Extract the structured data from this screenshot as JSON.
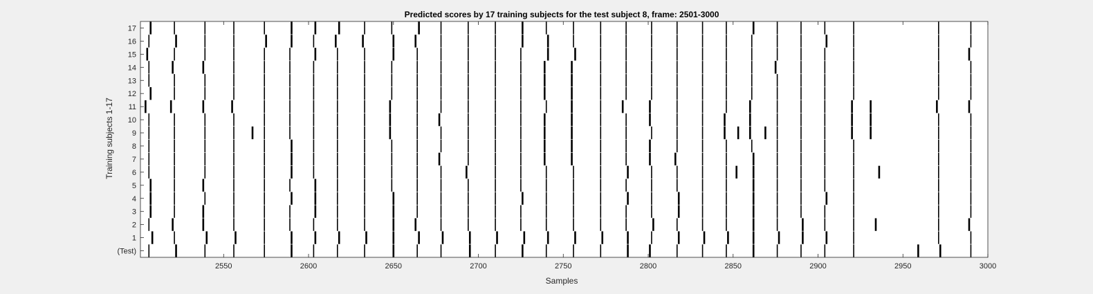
{
  "chart_data": {
    "type": "raster",
    "title": "Predicted scores by 17 training subjects for the test subject 8, frame: 2501-3000",
    "xlabel": "Samples",
    "ylabel": "Training subjects 1-17",
    "xlim": [
      2501,
      3000
    ],
    "xticks": [
      2550,
      2600,
      2650,
      2700,
      2750,
      2800,
      2850,
      2900,
      2950,
      3000
    ],
    "ytick_labels": [
      "(Test)",
      "1",
      "2",
      "3",
      "4",
      "5",
      "6",
      "7",
      "8",
      "9",
      "10",
      "11",
      "12",
      "13",
      "14",
      "15",
      "16",
      "17"
    ],
    "mark_color": "#000000",
    "background_color": "#ffffff",
    "grid": false,
    "base_events": [
      2506,
      2521,
      2539,
      2556,
      2574,
      2589,
      2603,
      2617,
      2633,
      2649,
      2664,
      2678,
      2694,
      2710,
      2725,
      2740,
      2756,
      2772,
      2787,
      2802,
      2817,
      2832,
      2846,
      2861,
      2876,
      2890,
      2904,
      2921,
      2971,
      2990
    ],
    "rows": [
      {
        "label": "(Test)",
        "events": [
          2506,
          2522,
          2539,
          2556,
          2574,
          2590,
          2603,
          2617,
          2633,
          2650,
          2664,
          2678,
          2695,
          2710,
          2726,
          2740,
          2756,
          2772,
          2788,
          2801,
          2817,
          2832,
          2846,
          2862,
          2876,
          2890,
          2904,
          2921,
          2959,
          2972,
          2990
        ]
      },
      {
        "label": "1",
        "events": [
          2508,
          2521,
          2540,
          2557,
          2574,
          2590,
          2604,
          2618,
          2634,
          2650,
          2665,
          2679,
          2695,
          2711,
          2727,
          2741,
          2757,
          2773,
          2788,
          2802,
          2818,
          2833,
          2847,
          2862,
          2877,
          2891,
          2905,
          2921,
          2971,
          2990
        ]
      },
      {
        "label": "2",
        "events": [
          2506,
          2520,
          2538,
          2556,
          2574,
          2589,
          2603,
          2617,
          2633,
          2650,
          2663,
          2678,
          2694,
          2710,
          2725,
          2740,
          2756,
          2772,
          2787,
          2803,
          2817,
          2832,
          2846,
          2862,
          2876,
          2891,
          2904,
          2921,
          2934,
          2971,
          2989
        ]
      },
      {
        "label": "3",
        "events": [
          2507,
          2521,
          2538,
          2556,
          2574,
          2589,
          2604,
          2617,
          2633,
          2650,
          2664,
          2678,
          2694,
          2710,
          2725,
          2740,
          2756,
          2772,
          2787,
          2802,
          2818,
          2832,
          2846,
          2862,
          2876,
          2890,
          2904,
          2921,
          2971,
          2990
        ]
      },
      {
        "label": "4",
        "events": [
          2507,
          2521,
          2539,
          2556,
          2574,
          2590,
          2604,
          2617,
          2633,
          2650,
          2664,
          2678,
          2694,
          2710,
          2726,
          2740,
          2756,
          2772,
          2788,
          2802,
          2818,
          2832,
          2846,
          2862,
          2876,
          2890,
          2905,
          2921,
          2971,
          2990
        ]
      },
      {
        "label": "5",
        "events": [
          2507,
          2521,
          2538,
          2556,
          2574,
          2589,
          2604,
          2617,
          2633,
          2649,
          2664,
          2678,
          2694,
          2710,
          2725,
          2740,
          2756,
          2772,
          2787,
          2802,
          2817,
          2832,
          2846,
          2862,
          2876,
          2890,
          2904,
          2921,
          2971,
          2990
        ]
      },
      {
        "label": "6",
        "events": [
          2506,
          2521,
          2539,
          2556,
          2574,
          2590,
          2603,
          2617,
          2633,
          2649,
          2664,
          2678,
          2693,
          2710,
          2725,
          2740,
          2756,
          2772,
          2788,
          2802,
          2817,
          2832,
          2846,
          2852,
          2862,
          2876,
          2890,
          2904,
          2921,
          2936,
          2971,
          2990
        ]
      },
      {
        "label": "7",
        "events": [
          2506,
          2521,
          2539,
          2556,
          2574,
          2590,
          2603,
          2617,
          2633,
          2649,
          2664,
          2677,
          2694,
          2710,
          2725,
          2739,
          2755,
          2772,
          2787,
          2801,
          2816,
          2832,
          2846,
          2862,
          2876,
          2890,
          2904,
          2921,
          2971,
          2990
        ]
      },
      {
        "label": "8",
        "events": [
          2506,
          2521,
          2539,
          2556,
          2574,
          2590,
          2603,
          2617,
          2633,
          2649,
          2664,
          2678,
          2694,
          2710,
          2725,
          2739,
          2755,
          2772,
          2787,
          2801,
          2817,
          2832,
          2846,
          2861,
          2876,
          2890,
          2904,
          2921,
          2971,
          2990
        ]
      },
      {
        "label": "9",
        "events": [
          2506,
          2521,
          2539,
          2556,
          2567,
          2574,
          2589,
          2603,
          2617,
          2633,
          2648,
          2664,
          2678,
          2694,
          2710,
          2725,
          2739,
          2755,
          2772,
          2787,
          2802,
          2817,
          2832,
          2845,
          2853,
          2860,
          2869,
          2876,
          2890,
          2904,
          2920,
          2931,
          2971,
          2990
        ]
      },
      {
        "label": "10",
        "events": [
          2506,
          2521,
          2539,
          2556,
          2574,
          2589,
          2603,
          2617,
          2633,
          2648,
          2664,
          2677,
          2694,
          2710,
          2725,
          2739,
          2755,
          2772,
          2787,
          2801,
          2817,
          2832,
          2845,
          2860,
          2876,
          2890,
          2904,
          2920,
          2931,
          2971,
          2990
        ]
      },
      {
        "label": "11",
        "events": [
          2504,
          2519,
          2538,
          2555,
          2574,
          2589,
          2603,
          2617,
          2633,
          2648,
          2664,
          2678,
          2694,
          2710,
          2725,
          2740,
          2755,
          2772,
          2785,
          2801,
          2817,
          2832,
          2846,
          2860,
          2876,
          2890,
          2904,
          2920,
          2931,
          2970,
          2989
        ]
      },
      {
        "label": "12",
        "events": [
          2507,
          2521,
          2539,
          2556,
          2574,
          2589,
          2603,
          2617,
          2633,
          2649,
          2664,
          2678,
          2694,
          2710,
          2725,
          2739,
          2755,
          2772,
          2787,
          2802,
          2817,
          2832,
          2846,
          2861,
          2876,
          2890,
          2904,
          2921,
          2971,
          2990
        ]
      },
      {
        "label": "13",
        "events": [
          2506,
          2521,
          2539,
          2556,
          2574,
          2589,
          2603,
          2617,
          2633,
          2649,
          2664,
          2678,
          2694,
          2710,
          2725,
          2739,
          2755,
          2772,
          2787,
          2802,
          2817,
          2832,
          2846,
          2861,
          2876,
          2890,
          2904,
          2921,
          2971,
          2990
        ]
      },
      {
        "label": "14",
        "events": [
          2506,
          2520,
          2538,
          2556,
          2574,
          2589,
          2603,
          2617,
          2633,
          2649,
          2664,
          2678,
          2694,
          2710,
          2725,
          2739,
          2755,
          2772,
          2787,
          2802,
          2817,
          2832,
          2846,
          2861,
          2875,
          2890,
          2904,
          2921,
          2971,
          2990
        ]
      },
      {
        "label": "15",
        "events": [
          2505,
          2521,
          2539,
          2556,
          2574,
          2589,
          2604,
          2617,
          2633,
          2650,
          2664,
          2678,
          2694,
          2710,
          2725,
          2741,
          2757,
          2772,
          2787,
          2802,
          2817,
          2832,
          2846,
          2861,
          2876,
          2890,
          2904,
          2921,
          2971,
          2989
        ]
      },
      {
        "label": "16",
        "events": [
          2506,
          2522,
          2539,
          2556,
          2575,
          2590,
          2603,
          2616,
          2632,
          2650,
          2663,
          2678,
          2694,
          2710,
          2726,
          2741,
          2756,
          2772,
          2787,
          2802,
          2817,
          2832,
          2846,
          2861,
          2876,
          2890,
          2905,
          2921,
          2971,
          2990
        ]
      },
      {
        "label": "17",
        "events": [
          2507,
          2521,
          2539,
          2556,
          2574,
          2590,
          2604,
          2618,
          2633,
          2649,
          2665,
          2678,
          2694,
          2710,
          2726,
          2740,
          2756,
          2772,
          2787,
          2802,
          2817,
          2832,
          2846,
          2862,
          2876,
          2890,
          2904,
          2921,
          2971,
          2990
        ]
      }
    ]
  }
}
